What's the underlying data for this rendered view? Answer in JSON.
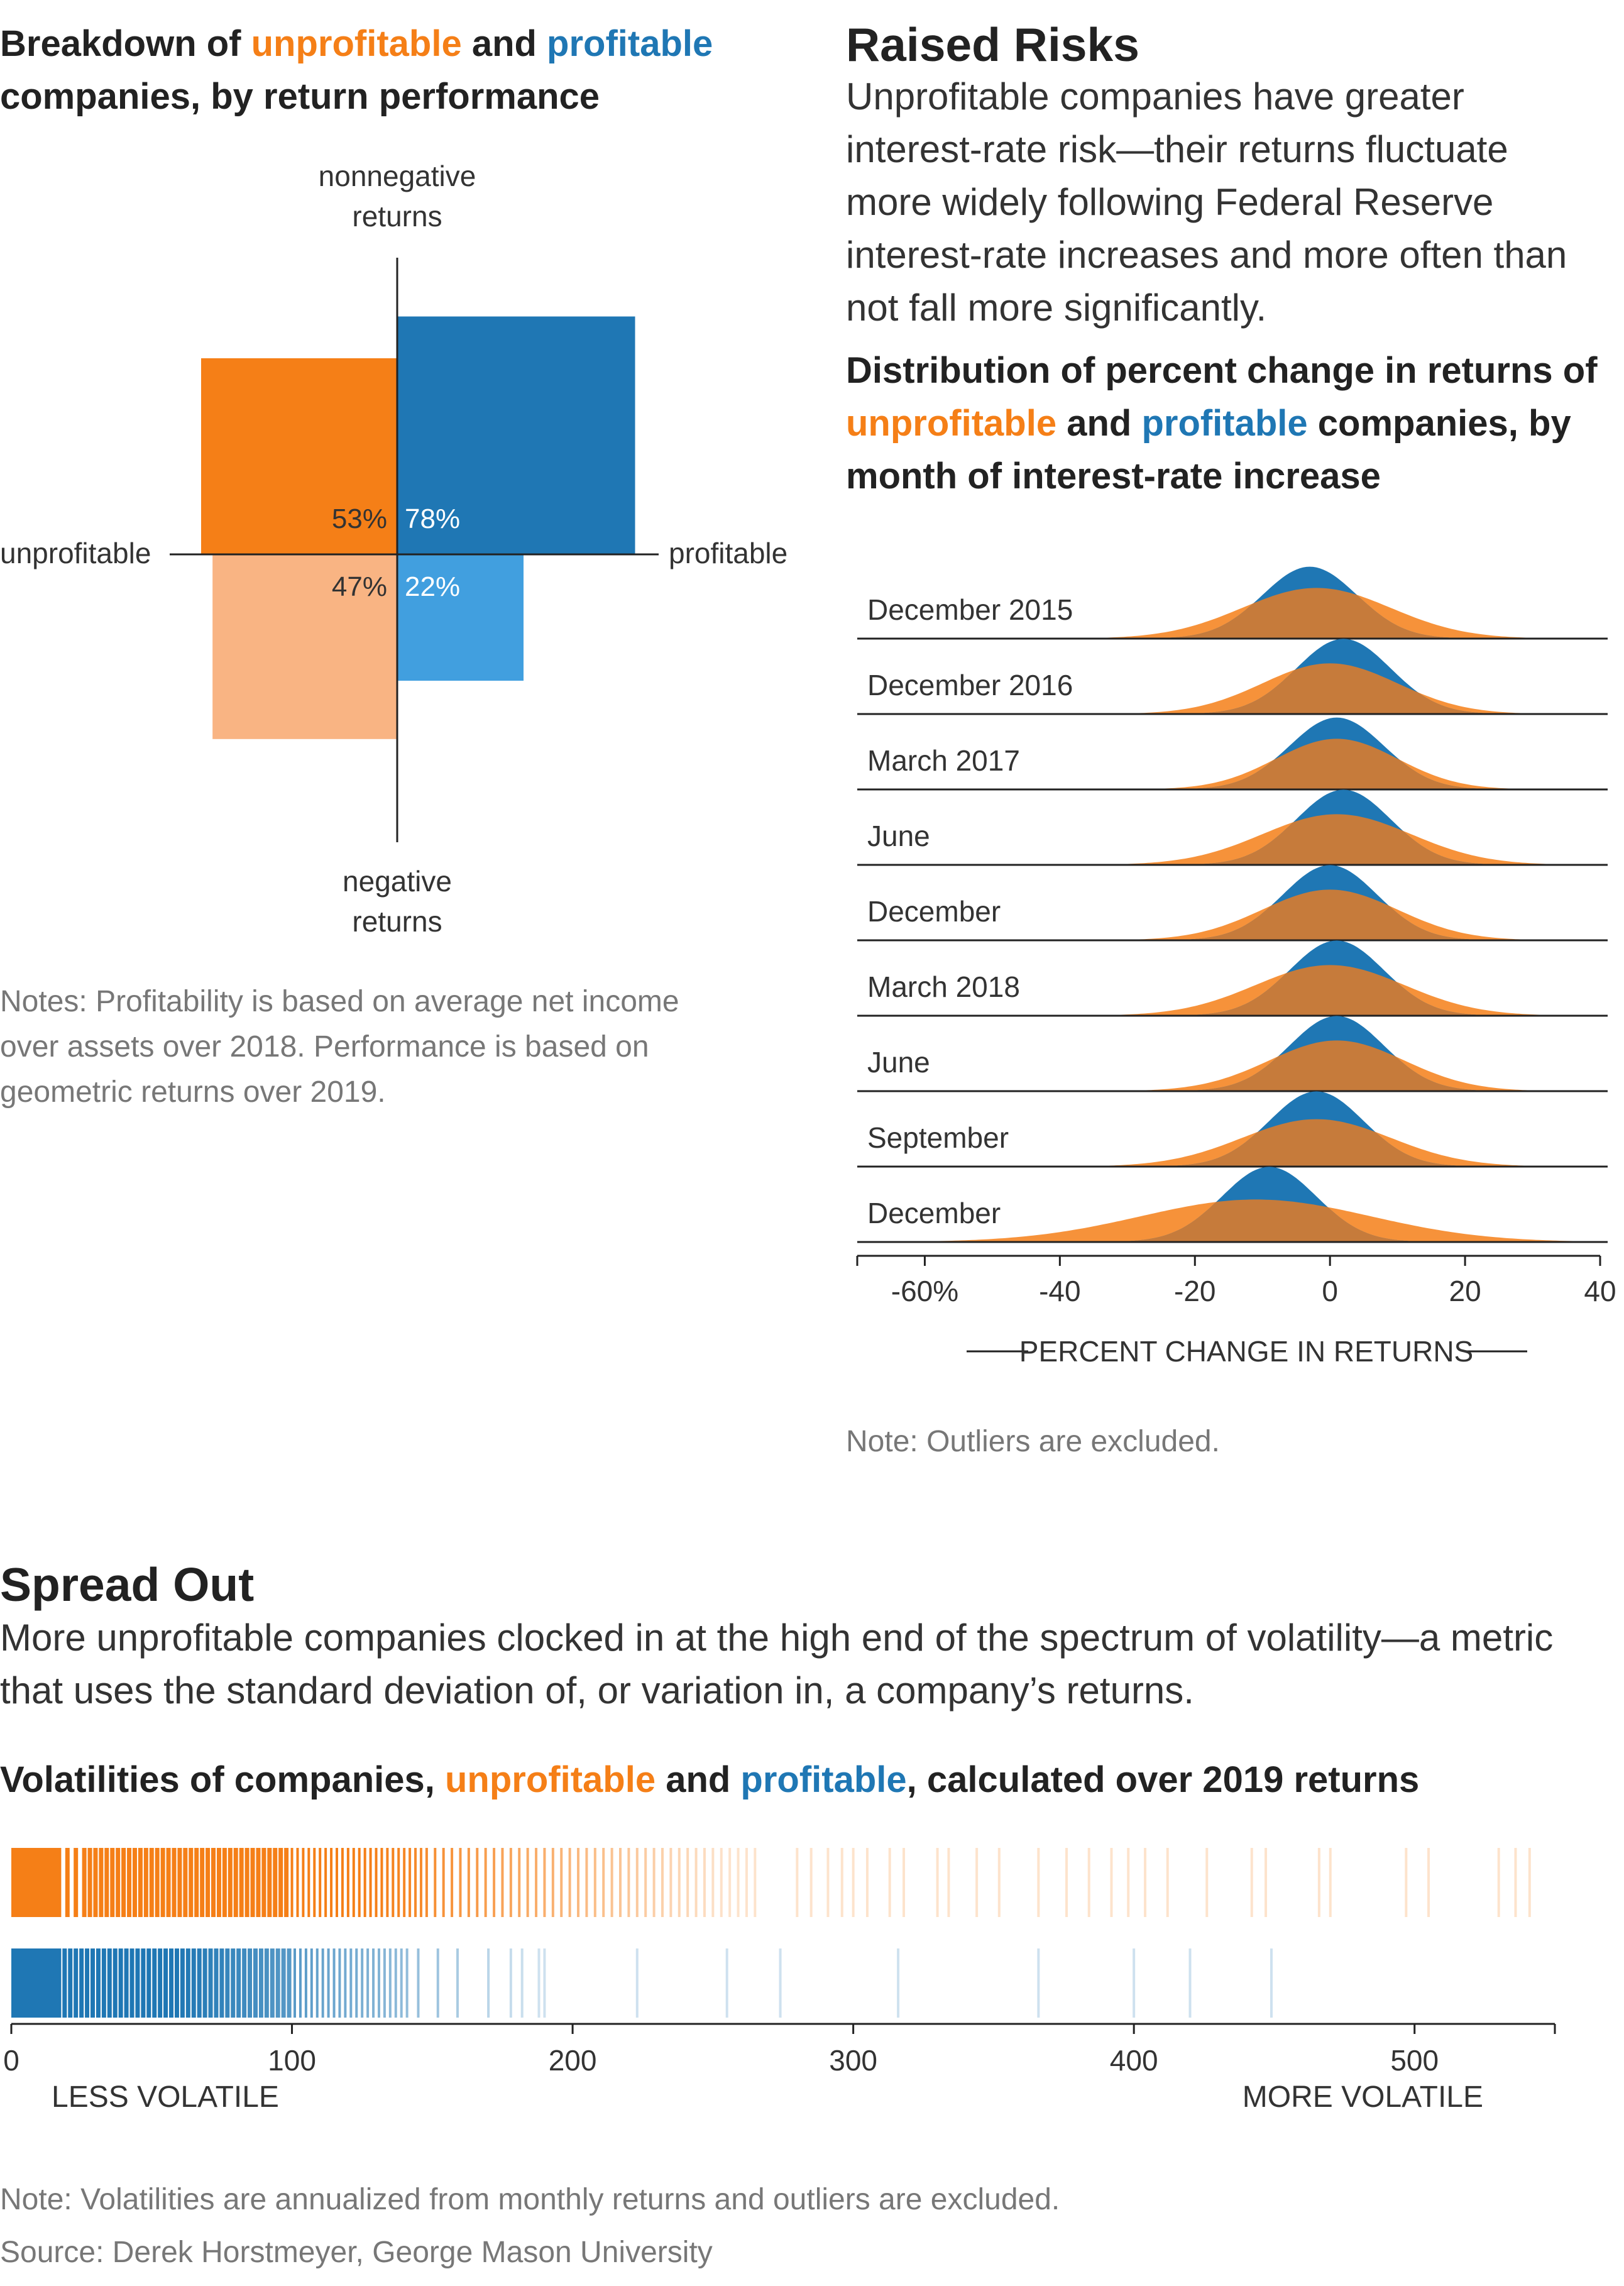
{
  "breakdown": {
    "title_line1_prefix": "Breakdown of ",
    "title_unprofitable": "unprofitable",
    "title_and": " and ",
    "title_profitable": "profitable",
    "title_line2": "companies, by return performance",
    "axis_top": [
      "nonnegative",
      "returns"
    ],
    "axis_bottom": [
      "negative",
      "returns"
    ],
    "axis_left": "unprofitable",
    "axis_right": "profitable",
    "note": [
      "Notes: Profitability is based on average net income",
      "over assets over 2018. Performance is based on",
      "geometric returns over 2019."
    ]
  },
  "risks": {
    "title": "Raised Risks",
    "deck": [
      "Unprofitable companies have greater",
      "interest-rate risk—their returns fluctuate",
      "more widely following Federal Reserve",
      "interest-rate increases and more often than",
      "not fall more significantly."
    ],
    "subtitle_line1": "Distribution of percent change in returns of",
    "subtitle_unprofitable": "unprofitable",
    "subtitle_and": " and ",
    "subtitle_profitable": "profitable",
    "subtitle_line2_suffix": " companies, by",
    "subtitle_line3": "month of interest-rate increase",
    "xlabel": "PERCENT CHANGE IN RETURNS",
    "note": "Note: Outliers are excluded."
  },
  "spread": {
    "title": "Spread Out",
    "deck": [
      "More unprofitable companies clocked in at the high end of the spectrum of volatility—a metric",
      "that uses the standard deviation of, or variation in, a company’s returns."
    ],
    "subtitle_prefix": "Volatilities of companies, ",
    "subtitle_unprofitable": "unprofitable",
    "subtitle_and": " and ",
    "subtitle_profitable": "profitable",
    "subtitle_suffix": ", calculated over 2019 returns",
    "less_label": "LESS VOLATILE",
    "more_label": "MORE VOLATILE",
    "note": "Note: Volatilities are annualized from monthly returns and outliers are excluded.",
    "source": "Source: Derek Horstmeyer, George Mason University"
  },
  "colors": {
    "unprofitable": "#f57f17",
    "unprofitable_light": "#f9b483",
    "profitable": "#1f77b4",
    "profitable_light": "#419fdf",
    "overlap": "#c67b3b"
  },
  "chart_data": [
    {
      "type": "bar",
      "categories": [
        "unprofitable",
        "profitable"
      ],
      "series": [
        {
          "name": "nonnegative returns",
          "values": [
            53,
            78
          ]
        },
        {
          "name": "negative returns",
          "values": [
            47,
            22
          ]
        }
      ],
      "labels": {
        "unprofitable_nonnegative": "53%",
        "profitable_nonnegative": "78%",
        "unprofitable_negative": "47%",
        "profitable_negative": "22%"
      }
    },
    {
      "type": "area",
      "xlim": [
        -70,
        40
      ],
      "xticks": [
        {
          "value": -60,
          "label": "-60%"
        },
        {
          "value": -40,
          "label": "-40"
        },
        {
          "value": -20,
          "label": "-20"
        },
        {
          "value": 0,
          "label": "0"
        },
        {
          "value": 20,
          "label": "20"
        },
        {
          "value": 40,
          "label": "40"
        }
      ],
      "rows": [
        {
          "label": "December 2015",
          "unprofitable": {
            "mean": -2,
            "sd": 11,
            "peak": 0.62
          },
          "profitable": {
            "mean": -3,
            "sd": 7,
            "peak": 0.88
          }
        },
        {
          "label": "December 2016",
          "unprofitable": {
            "mean": 0,
            "sd": 10,
            "peak": 0.62
          },
          "profitable": {
            "mean": 2,
            "sd": 7,
            "peak": 0.92
          }
        },
        {
          "label": "March 2017",
          "unprofitable": {
            "mean": 1,
            "sd": 9,
            "peak": 0.62
          },
          "profitable": {
            "mean": 1,
            "sd": 7,
            "peak": 0.88
          }
        },
        {
          "label": "June",
          "unprofitable": {
            "mean": 1,
            "sd": 11,
            "peak": 0.62
          },
          "profitable": {
            "mean": 2,
            "sd": 7,
            "peak": 0.92
          }
        },
        {
          "label": "December",
          "unprofitable": {
            "mean": 0,
            "sd": 10,
            "peak": 0.62
          },
          "profitable": {
            "mean": 0,
            "sd": 7,
            "peak": 0.92
          }
        },
        {
          "label": "March 2018",
          "unprofitable": {
            "mean": 0,
            "sd": 11,
            "peak": 0.62
          },
          "profitable": {
            "mean": 1,
            "sd": 7,
            "peak": 0.92
          }
        },
        {
          "label": "June",
          "unprofitable": {
            "mean": 1,
            "sd": 10,
            "peak": 0.62
          },
          "profitable": {
            "mean": 1,
            "sd": 7,
            "peak": 0.92
          }
        },
        {
          "label": "September",
          "unprofitable": {
            "mean": -2,
            "sd": 11,
            "peak": 0.58
          },
          "profitable": {
            "mean": -2,
            "sd": 7,
            "peak": 0.92
          }
        },
        {
          "label": "December",
          "unprofitable": {
            "mean": -11,
            "sd": 17,
            "peak": 0.52
          },
          "profitable": {
            "mean": -9,
            "sd": 7,
            "peak": 0.92
          }
        }
      ]
    },
    {
      "type": "scatter",
      "xlim": [
        0,
        550
      ],
      "xticks": [
        0,
        100,
        200,
        300,
        400,
        500
      ],
      "series": [
        {
          "name": "unprofitable",
          "values": [
            17,
            20,
            23,
            26,
            28,
            30,
            32,
            34,
            36,
            38,
            40,
            42,
            44,
            46,
            48,
            50,
            52,
            54,
            56,
            58,
            60,
            62,
            64,
            66,
            68,
            70,
            72,
            74,
            76,
            78,
            80,
            82,
            84,
            86,
            88,
            90,
            92,
            94,
            96,
            98,
            100,
            102,
            104,
            106,
            108,
            110,
            112,
            114,
            116,
            118,
            120,
            122,
            124,
            126,
            128,
            130,
            132,
            134,
            136,
            138,
            140,
            142,
            144,
            146,
            148,
            151,
            154,
            157,
            160,
            163,
            166,
            169,
            172,
            175,
            178,
            181,
            184,
            187,
            190,
            193,
            196,
            199,
            202,
            205,
            208,
            211,
            214,
            217,
            220,
            223,
            226,
            229,
            232,
            235,
            238,
            241,
            244,
            247,
            250,
            253,
            256,
            259,
            262,
            265,
            280,
            285,
            291,
            296,
            300,
            305,
            313,
            318,
            330,
            334,
            344,
            352,
            366,
            376,
            384,
            392,
            398,
            404,
            412,
            426,
            442,
            447,
            466,
            470,
            497,
            505,
            530,
            536,
            541
          ]
        },
        {
          "name": "profitable",
          "values": [
            17,
            19,
            21,
            23,
            25,
            27,
            29,
            31,
            33,
            35,
            37,
            39,
            41,
            43,
            45,
            47,
            49,
            51,
            53,
            55,
            57,
            59,
            61,
            63,
            65,
            67,
            69,
            71,
            73,
            75,
            77,
            79,
            81,
            83,
            85,
            87,
            89,
            91,
            93,
            95,
            97,
            99,
            101,
            103,
            105,
            107,
            109,
            111,
            113,
            115,
            117,
            119,
            121,
            123,
            125,
            127,
            129,
            131,
            133,
            135,
            137,
            139,
            141,
            145,
            152,
            159,
            170,
            178,
            182,
            188,
            190,
            223,
            255,
            274,
            316,
            366,
            400,
            420,
            449
          ]
        }
      ]
    }
  ]
}
